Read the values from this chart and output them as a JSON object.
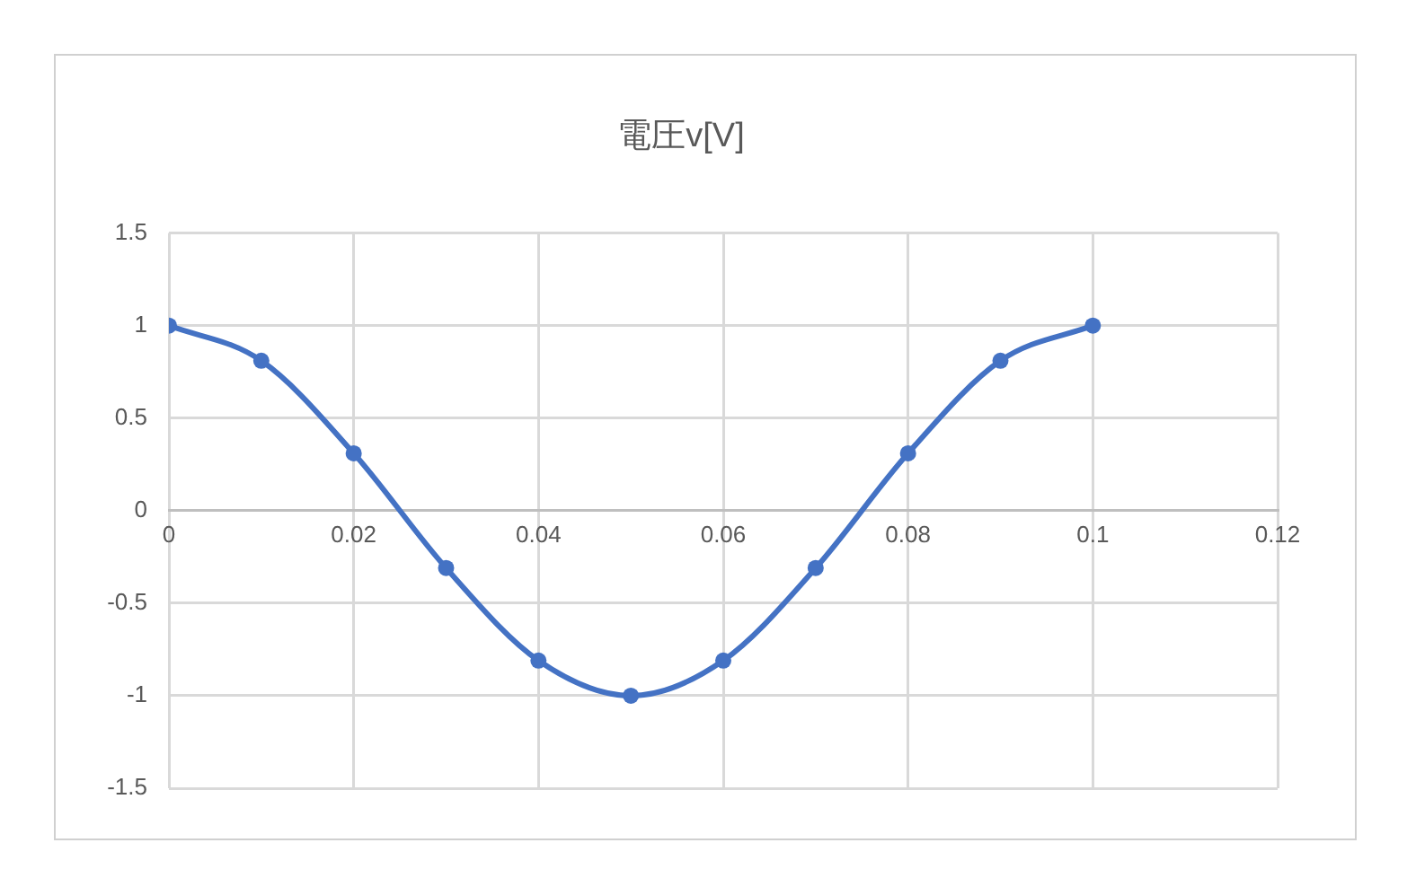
{
  "chart_data": {
    "type": "line",
    "title": "電圧v[V]",
    "x": [
      0,
      0.01,
      0.02,
      0.03,
      0.04,
      0.05,
      0.06,
      0.07,
      0.08,
      0.09,
      0.1
    ],
    "series": [
      {
        "color": "#4472c4",
        "values": [
          1,
          0.81,
          0.31,
          -0.31,
          -0.81,
          -1,
          -0.81,
          -0.31,
          0.31,
          0.81,
          1
        ]
      }
    ],
    "xlim": [
      0,
      0.12
    ],
    "xticks": [
      0,
      0.02,
      0.04,
      0.06,
      0.08,
      0.1,
      0.12
    ],
    "ylim": [
      -1.5,
      1.5
    ],
    "yticks": [
      -1.5,
      -1,
      -0.5,
      0,
      0.5,
      1,
      1.5
    ],
    "grid": true,
    "marker": "circle",
    "line_style": "solid"
  }
}
